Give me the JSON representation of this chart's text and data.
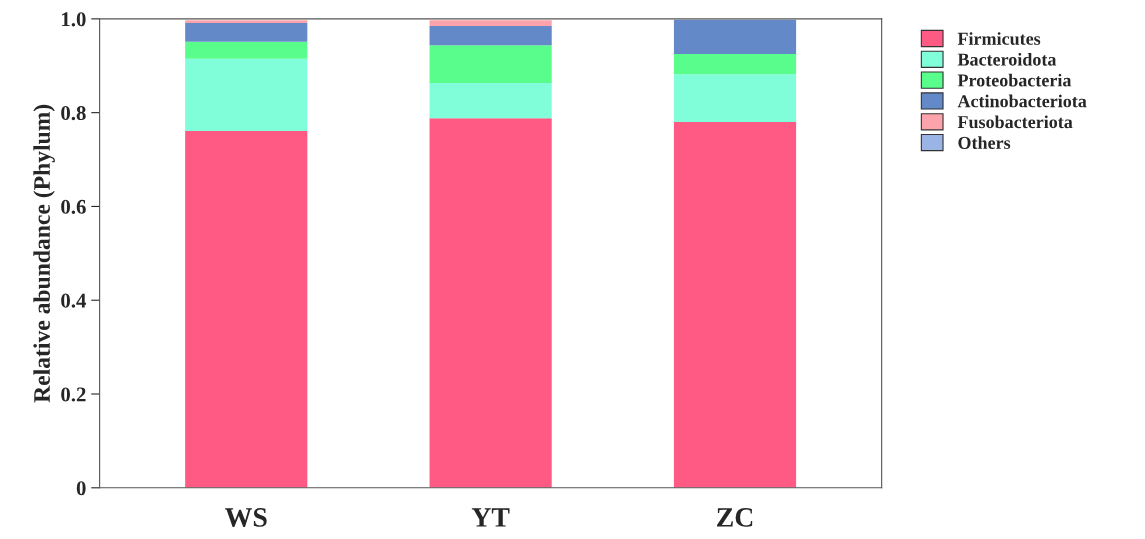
{
  "chart_data": {
    "type": "bar",
    "stacked": true,
    "ylabel": "Relative abundance (Phylum)",
    "categories": [
      "WS",
      "YT",
      "ZC"
    ],
    "ylim": [
      0,
      1.0
    ],
    "yticks": [
      {
        "value": 0,
        "label": "0"
      },
      {
        "value": 0.2,
        "label": "0.2"
      },
      {
        "value": 0.4,
        "label": "0.4"
      },
      {
        "value": 0.6,
        "label": "0.6"
      },
      {
        "value": 0.8,
        "label": "0.8"
      },
      {
        "value": 1.0,
        "label": "1.0"
      }
    ],
    "grid": false,
    "legend": "top right",
    "series": [
      {
        "name": "Firmicutes",
        "color": "#fe5a83",
        "values": [
          0.761,
          0.788,
          0.78
        ]
      },
      {
        "name": "Bacteroidota",
        "color": "#80fdd9",
        "values": [
          0.154,
          0.075,
          0.102
        ]
      },
      {
        "name": "Proteobacteria",
        "color": "#58fd8c",
        "values": [
          0.036,
          0.081,
          0.043
        ]
      },
      {
        "name": "Actinobacteriota",
        "color": "#6489c8",
        "values": [
          0.04,
          0.041,
          0.073
        ]
      },
      {
        "name": "Fusobacteriota",
        "color": "#fda3ab",
        "values": [
          0.006,
          0.012,
          0.0
        ]
      },
      {
        "name": "Others",
        "color": "#9ab4e6",
        "values": [
          null,
          null,
          null
        ]
      }
    ]
  }
}
